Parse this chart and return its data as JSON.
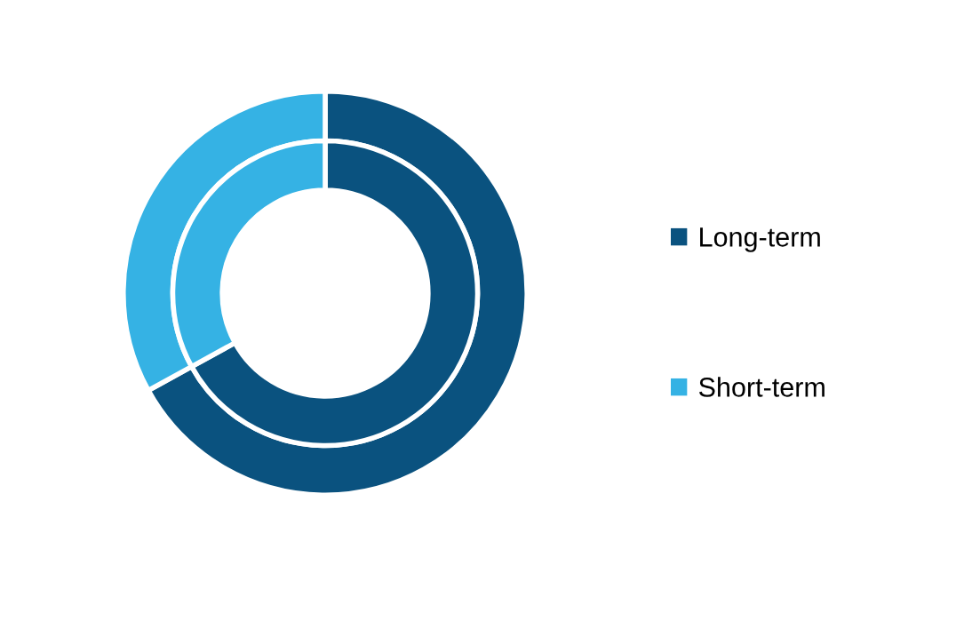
{
  "chart_data": {
    "type": "donut",
    "categories": [
      "Long-term",
      "Short-term"
    ],
    "colors": [
      "#0a527f",
      "#35b2e4"
    ],
    "series": [
      {
        "values": [
          67,
          33
        ]
      },
      {
        "values": [
          67,
          33
        ]
      }
    ],
    "legend": "right"
  }
}
